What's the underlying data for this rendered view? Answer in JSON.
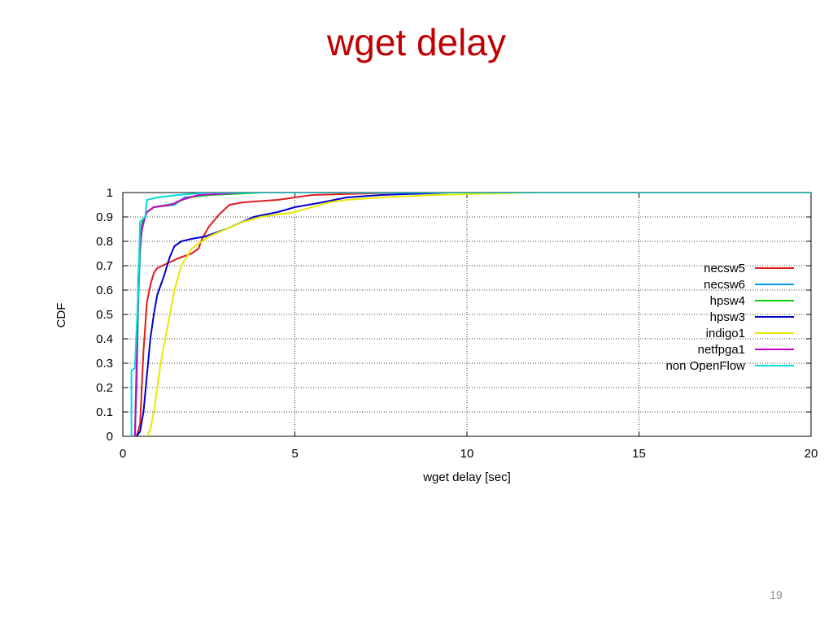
{
  "slide": {
    "title": "wget delay",
    "title_color": "#c00000",
    "page_number": "19"
  },
  "chart_data": {
    "type": "line",
    "title": "",
    "xlabel": "wget delay [sec]",
    "ylabel": "CDF",
    "xlim": [
      0,
      20
    ],
    "ylim": [
      0,
      1
    ],
    "xticks": [
      0,
      5,
      10,
      15,
      20
    ],
    "yticks": [
      0,
      0.1,
      0.2,
      0.3,
      0.4,
      0.5,
      0.6,
      0.7,
      0.8,
      0.9,
      1
    ],
    "grid": true,
    "legend_position": "right",
    "series": [
      {
        "name": "necsw5",
        "color": "#e41a1c",
        "points": [
          [
            0.4,
            0
          ],
          [
            0.5,
            0.05
          ],
          [
            0.55,
            0.2
          ],
          [
            0.6,
            0.35
          ],
          [
            0.65,
            0.45
          ],
          [
            0.7,
            0.55
          ],
          [
            0.8,
            0.62
          ],
          [
            0.9,
            0.67
          ],
          [
            1.0,
            0.69
          ],
          [
            1.3,
            0.71
          ],
          [
            1.6,
            0.73
          ],
          [
            2.0,
            0.75
          ],
          [
            2.2,
            0.77
          ],
          [
            2.3,
            0.81
          ],
          [
            2.5,
            0.86
          ],
          [
            2.8,
            0.91
          ],
          [
            3.1,
            0.95
          ],
          [
            3.5,
            0.96
          ],
          [
            4.5,
            0.97
          ],
          [
            5.5,
            0.99
          ],
          [
            8.0,
            1.0
          ],
          [
            20,
            1.0
          ]
        ]
      },
      {
        "name": "necsw6",
        "color": "#0099ee",
        "points": [
          [
            0.35,
            0
          ],
          [
            0.4,
            0.2
          ],
          [
            0.45,
            0.55
          ],
          [
            0.5,
            0.75
          ],
          [
            0.55,
            0.85
          ],
          [
            0.7,
            0.92
          ],
          [
            0.9,
            0.94
          ],
          [
            1.5,
            0.95
          ],
          [
            1.8,
            0.98
          ],
          [
            2.5,
            0.99
          ],
          [
            4.0,
            1.0
          ],
          [
            20,
            1.0
          ]
        ]
      },
      {
        "name": "hpsw4",
        "color": "#00cc00",
        "points": [
          [
            0.35,
            0
          ],
          [
            0.4,
            0.25
          ],
          [
            0.45,
            0.6
          ],
          [
            0.5,
            0.78
          ],
          [
            0.55,
            0.87
          ],
          [
            0.7,
            0.92
          ],
          [
            0.9,
            0.94
          ],
          [
            1.5,
            0.955
          ],
          [
            1.9,
            0.98
          ],
          [
            2.5,
            0.99
          ],
          [
            4.0,
            1.0
          ],
          [
            20,
            1.0
          ]
        ]
      },
      {
        "name": "hpsw3",
        "color": "#0000cc",
        "points": [
          [
            0.4,
            0
          ],
          [
            0.5,
            0.02
          ],
          [
            0.6,
            0.1
          ],
          [
            0.7,
            0.25
          ],
          [
            0.8,
            0.4
          ],
          [
            0.9,
            0.5
          ],
          [
            1.0,
            0.58
          ],
          [
            1.2,
            0.66
          ],
          [
            1.35,
            0.73
          ],
          [
            1.5,
            0.78
          ],
          [
            1.7,
            0.8
          ],
          [
            2.0,
            0.81
          ],
          [
            2.4,
            0.82
          ],
          [
            3.0,
            0.85
          ],
          [
            3.8,
            0.9
          ],
          [
            4.5,
            0.92
          ],
          [
            5.0,
            0.94
          ],
          [
            5.8,
            0.96
          ],
          [
            6.5,
            0.98
          ],
          [
            7.5,
            0.99
          ],
          [
            9.5,
            1.0
          ],
          [
            20,
            1.0
          ]
        ]
      },
      {
        "name": "indigo1",
        "color": "#e8e800",
        "points": [
          [
            0.7,
            0
          ],
          [
            0.8,
            0.03
          ],
          [
            0.9,
            0.1
          ],
          [
            1.0,
            0.2
          ],
          [
            1.1,
            0.3
          ],
          [
            1.3,
            0.45
          ],
          [
            1.5,
            0.6
          ],
          [
            1.7,
            0.7
          ],
          [
            2.0,
            0.77
          ],
          [
            2.5,
            0.82
          ],
          [
            3.0,
            0.85
          ],
          [
            3.5,
            0.88
          ],
          [
            4.0,
            0.9
          ],
          [
            5.0,
            0.92
          ],
          [
            5.5,
            0.94
          ],
          [
            6.0,
            0.96
          ],
          [
            6.5,
            0.97
          ],
          [
            7.5,
            0.98
          ],
          [
            9.0,
            0.99
          ],
          [
            12.0,
            1.0
          ],
          [
            20,
            1.0
          ]
        ]
      },
      {
        "name": "netfpga1",
        "color": "#cc00cc",
        "points": [
          [
            0.35,
            0
          ],
          [
            0.4,
            0.3
          ],
          [
            0.45,
            0.65
          ],
          [
            0.5,
            0.8
          ],
          [
            0.6,
            0.88
          ],
          [
            0.7,
            0.92
          ],
          [
            0.9,
            0.94
          ],
          [
            1.4,
            0.95
          ],
          [
            1.7,
            0.97
          ],
          [
            2.2,
            0.99
          ],
          [
            3.5,
            1.0
          ],
          [
            20,
            1.0
          ]
        ]
      },
      {
        "name": "non OpenFlow",
        "color": "#00dddd",
        "points": [
          [
            0.25,
            0
          ],
          [
            0.25,
            0.27
          ],
          [
            0.35,
            0.28
          ],
          [
            0.45,
            0.6
          ],
          [
            0.5,
            0.88
          ],
          [
            0.65,
            0.9
          ],
          [
            0.7,
            0.97
          ],
          [
            1.0,
            0.98
          ],
          [
            1.6,
            0.99
          ],
          [
            2.5,
            1.0
          ],
          [
            20,
            1.0
          ]
        ]
      }
    ]
  }
}
